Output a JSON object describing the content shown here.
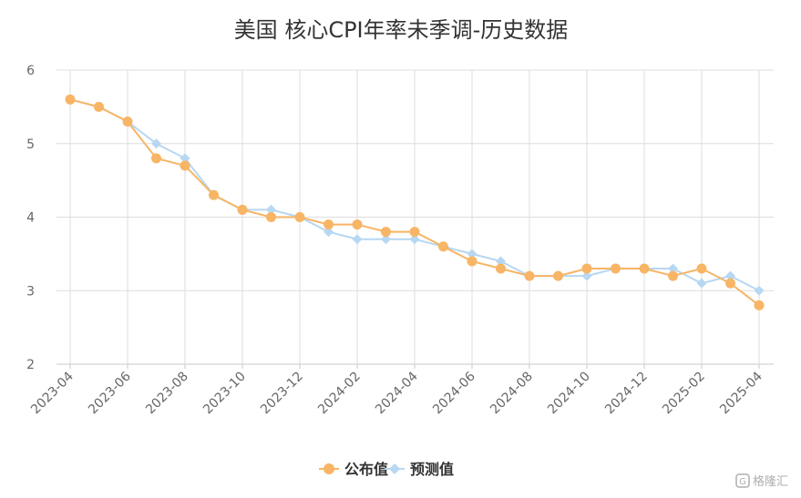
{
  "chart_data": {
    "type": "line",
    "title": "美国 核心CPI年率未季调-历史数据",
    "xlabel": "",
    "ylabel": "",
    "ylim": [
      2,
      6
    ],
    "yticks": [
      2,
      3,
      4,
      5,
      6
    ],
    "grid": true,
    "legend_position": "bottom-center",
    "x": [
      "2023-04",
      "2023-05",
      "2023-06",
      "2023-07",
      "2023-08",
      "2023-09",
      "2023-10",
      "2023-11",
      "2023-12",
      "2024-01",
      "2024-02",
      "2024-03",
      "2024-04",
      "2024-05",
      "2024-06",
      "2024-07",
      "2024-08",
      "2024-09",
      "2024-10",
      "2024-11",
      "2024-12",
      "2025-01",
      "2025-02",
      "2025-03",
      "2025-04"
    ],
    "x_tick_labels": [
      "2023-04",
      "2023-06",
      "2023-08",
      "2023-10",
      "2023-12",
      "2024-02",
      "2024-04",
      "2024-06",
      "2024-08",
      "2024-10",
      "2024-12",
      "2025-02",
      "2025-04"
    ],
    "series": [
      {
        "name": "公布值",
        "color": "#F7B565",
        "marker": "circle",
        "values": [
          5.6,
          5.5,
          5.3,
          4.8,
          4.7,
          4.3,
          4.1,
          4.0,
          4.0,
          3.9,
          3.9,
          3.8,
          3.8,
          3.6,
          3.4,
          3.3,
          3.2,
          3.2,
          3.3,
          3.3,
          3.3,
          3.2,
          3.3,
          3.1,
          2.8
        ]
      },
      {
        "name": "预测值",
        "color": "#B7D7F2",
        "marker": "diamond",
        "values": [
          5.6,
          5.5,
          5.3,
          5.0,
          4.8,
          4.3,
          4.1,
          4.1,
          4.0,
          3.8,
          3.7,
          3.7,
          3.7,
          3.6,
          3.5,
          3.4,
          3.2,
          3.2,
          3.2,
          3.3,
          3.3,
          3.3,
          3.1,
          3.2,
          3.0
        ]
      }
    ]
  },
  "watermark": {
    "text": "格隆汇"
  }
}
